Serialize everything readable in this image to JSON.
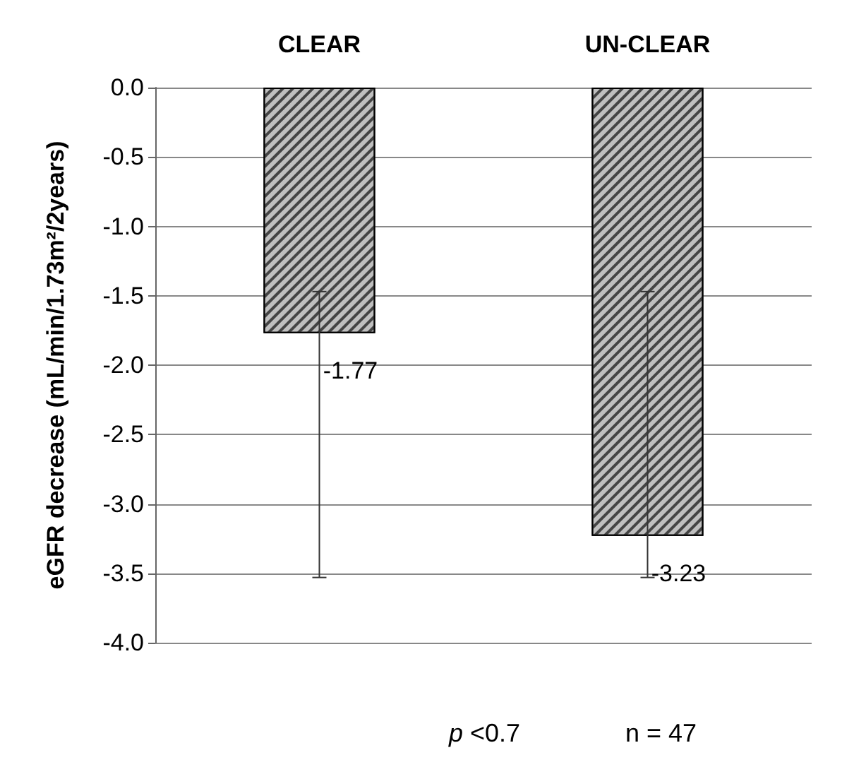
{
  "chart_data": {
    "type": "bar",
    "categories": [
      "CLEAR",
      "UN-CLEAR"
    ],
    "values": [
      -1.77,
      -3.23
    ],
    "errors": [
      [
        -3.53,
        -1.47
      ],
      [
        -3.53,
        -1.47
      ]
    ],
    "color": "#bfbfbf",
    "data_labels": true,
    "ylabel": "eGFR decrease (mL/min/1.73m²/2years)",
    "ylim": [
      -4.0,
      0.0
    ],
    "yticks": [
      {
        "value": 0,
        "label": "0.0"
      },
      {
        "value": -0.5,
        "label": "-0.5"
      },
      {
        "value": -1,
        "label": "-1.0"
      },
      {
        "value": -1.5,
        "label": "-1.5"
      },
      {
        "value": -2,
        "label": "-2.0"
      },
      {
        "value": -2.5,
        "label": "-2.5"
      },
      {
        "value": -3,
        "label": "-3.0"
      },
      {
        "value": -3.5,
        "label": "-3.5"
      },
      {
        "value": -4,
        "label": "-4.0"
      }
    ],
    "grid": "y",
    "annotations": [
      "p <0.7",
      "n = 47"
    ]
  }
}
